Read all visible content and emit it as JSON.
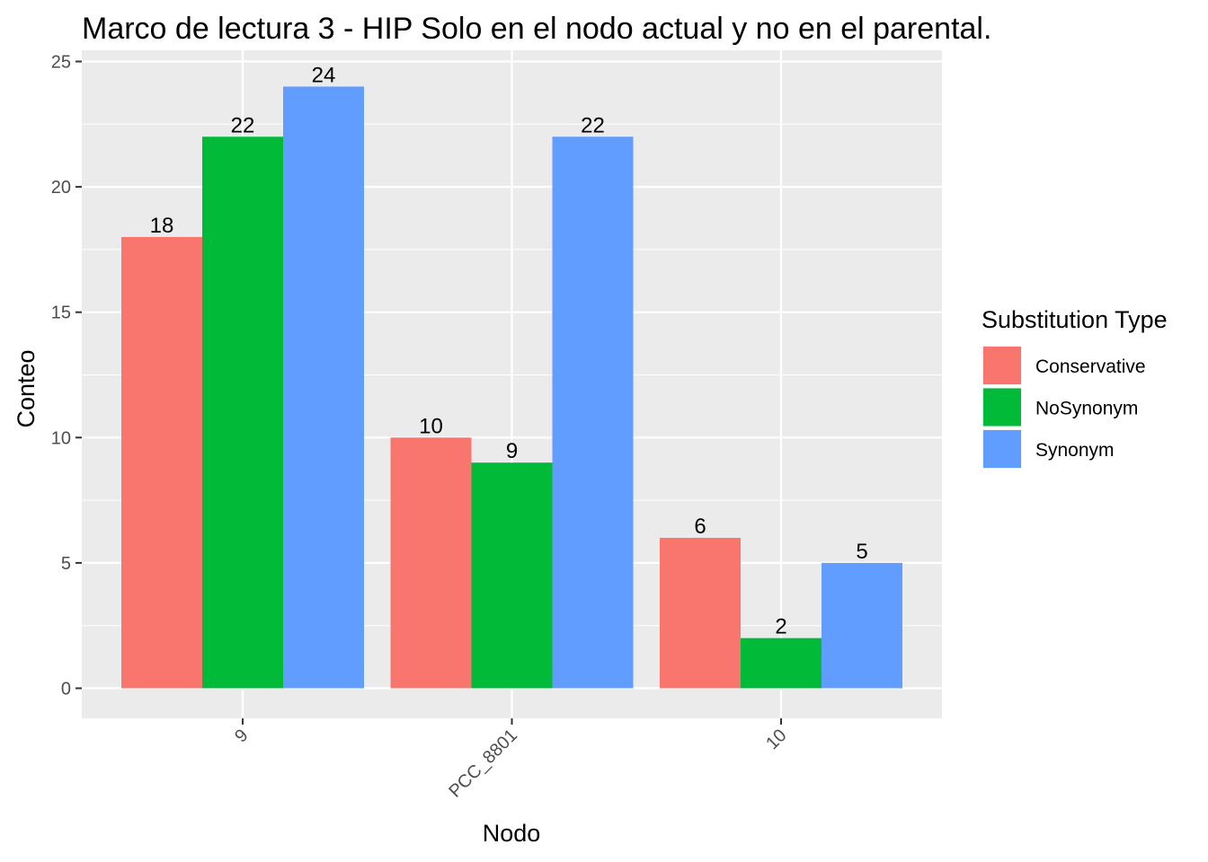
{
  "chart_data": {
    "type": "bar",
    "title": "Marco de lectura 3 - HIP Solo en el nodo actual y no en el parental.",
    "xlabel": "Nodo",
    "ylabel": "Conteo",
    "categories": [
      "9",
      "PCC_8801",
      "10"
    ],
    "series": [
      {
        "name": "Conservative",
        "values": [
          18,
          10,
          6
        ],
        "color": "#F8766D"
      },
      {
        "name": "NoSynonym",
        "values": [
          22,
          9,
          2
        ],
        "color": "#00BA38"
      },
      {
        "name": "Synonym",
        "values": [
          24,
          22,
          5
        ],
        "color": "#619CFF"
      }
    ],
    "ylim": [
      0,
      25
    ],
    "y_ticks": [
      0,
      5,
      10,
      15,
      20,
      25
    ],
    "x_tick_rotation_deg": 45,
    "legend": {
      "title": "Substitution Type",
      "position": "right"
    },
    "grid": true,
    "panel_background": "#EBEBEB",
    "data_labels": true
  }
}
